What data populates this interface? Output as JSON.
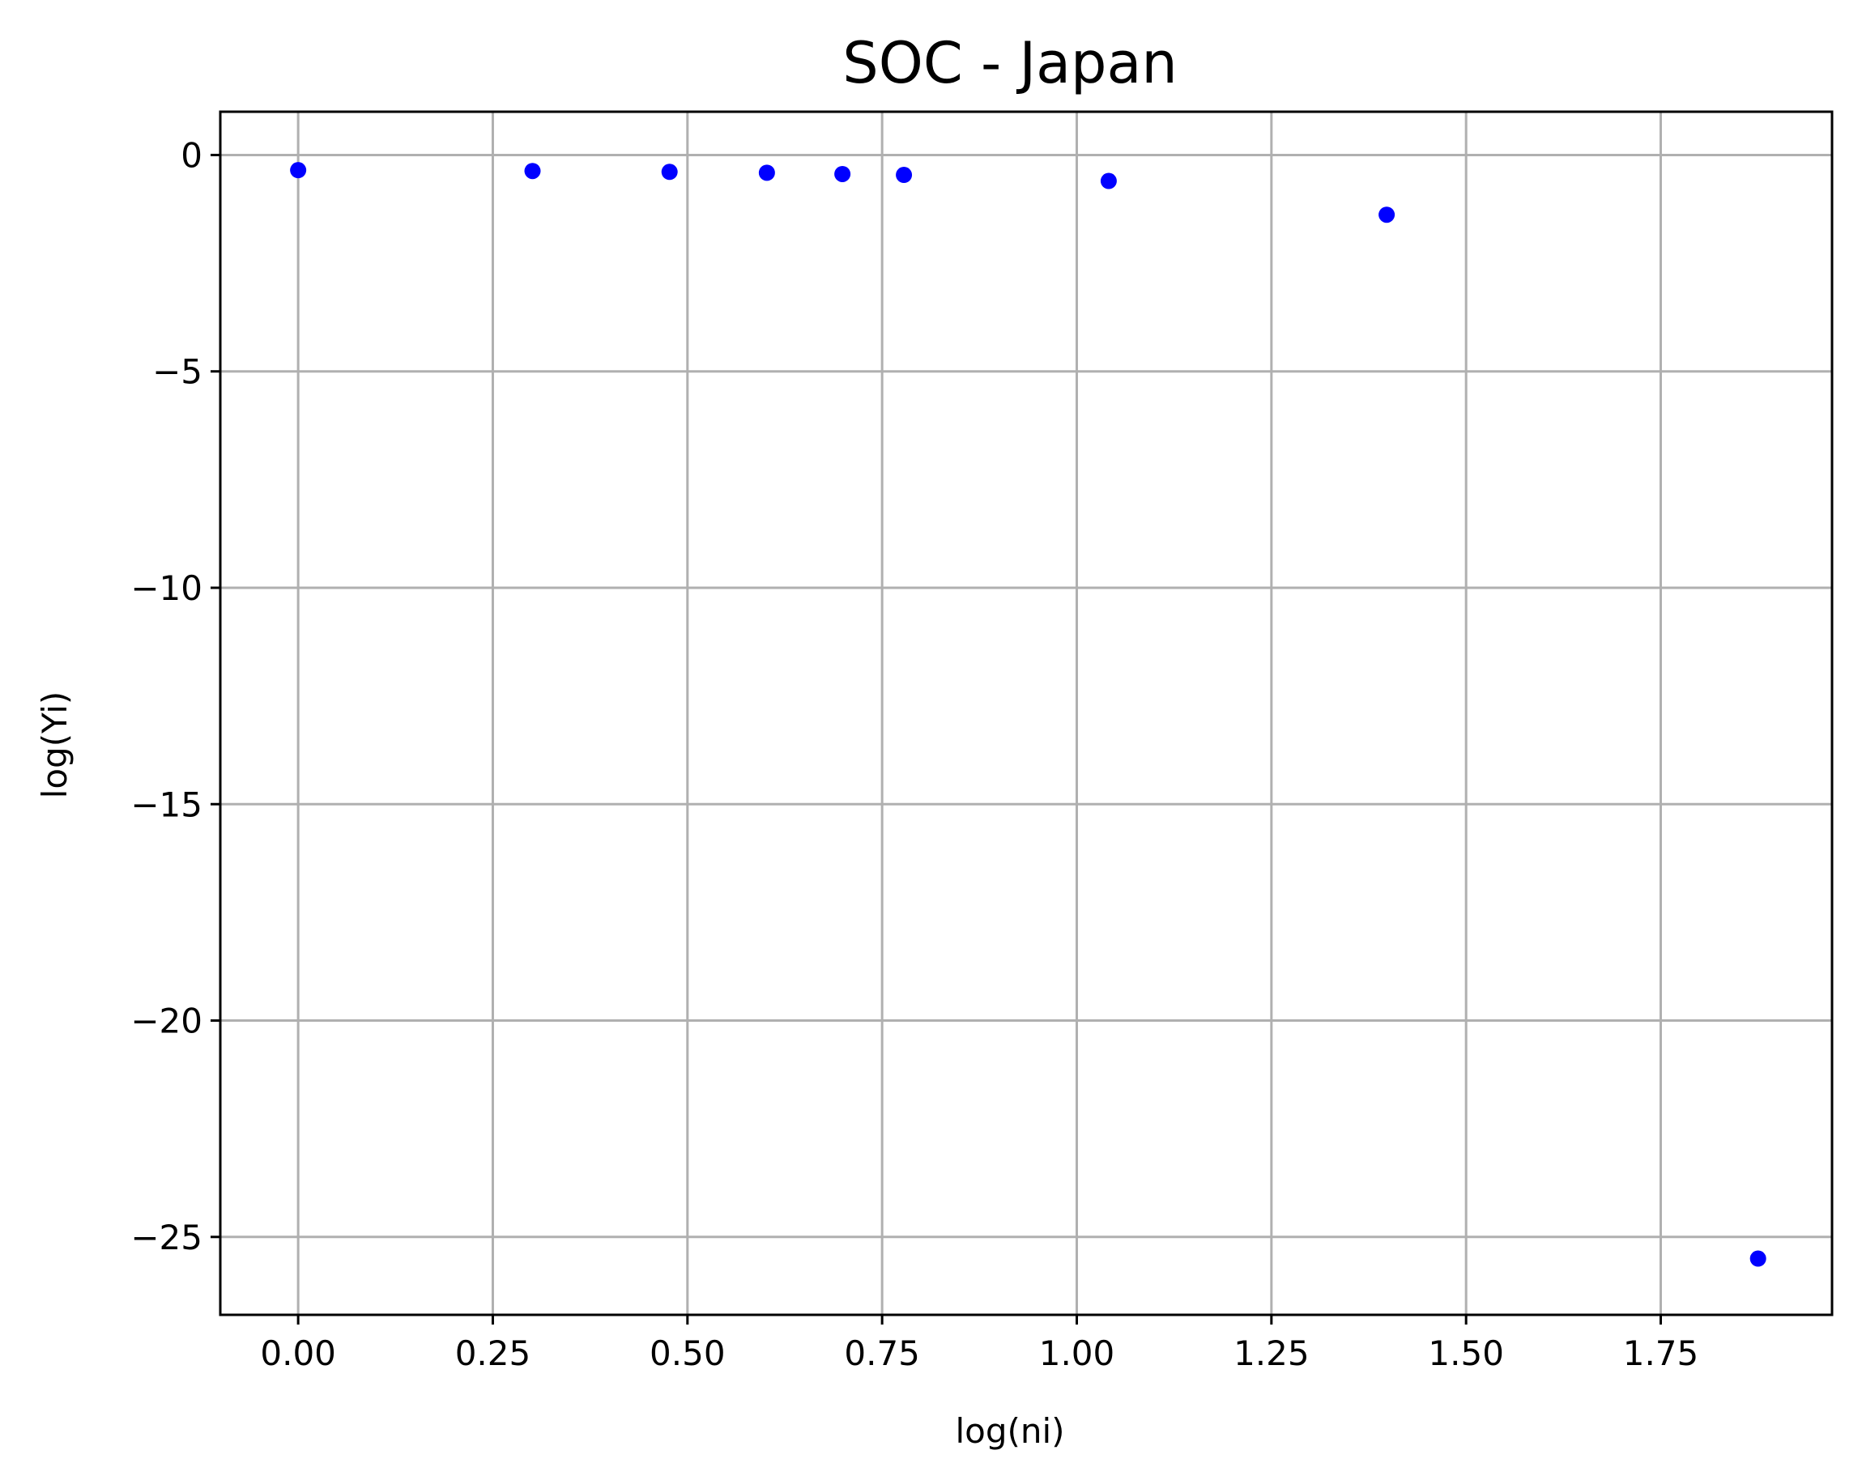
{
  "chart_data": {
    "type": "scatter",
    "title": "SOC - Japan",
    "xlabel": "log(ni)",
    "ylabel": "log(Yi)",
    "xlim": [
      -0.1,
      1.97
    ],
    "ylim": [
      -26.8,
      1.0
    ],
    "xticks": [
      0.0,
      0.25,
      0.5,
      0.75,
      1.0,
      1.25,
      1.5,
      1.75
    ],
    "xtick_labels": [
      "0.00",
      "0.25",
      "0.50",
      "0.75",
      "1.00",
      "1.25",
      "1.50",
      "1.75"
    ],
    "yticks": [
      0,
      -5,
      -10,
      -15,
      -20,
      -25
    ],
    "ytick_labels": [
      "0",
      "−5",
      "−10",
      "−15",
      "−20",
      "−25"
    ],
    "grid": true,
    "point_color": "#0000ff",
    "series": [
      {
        "x": [
          0.0,
          0.301,
          0.477,
          0.602,
          0.699,
          0.778,
          1.041,
          1.398,
          1.875
        ],
        "y": [
          -0.35,
          -0.37,
          -0.39,
          -0.41,
          -0.44,
          -0.46,
          -0.6,
          -1.38,
          -25.5
        ]
      }
    ]
  }
}
